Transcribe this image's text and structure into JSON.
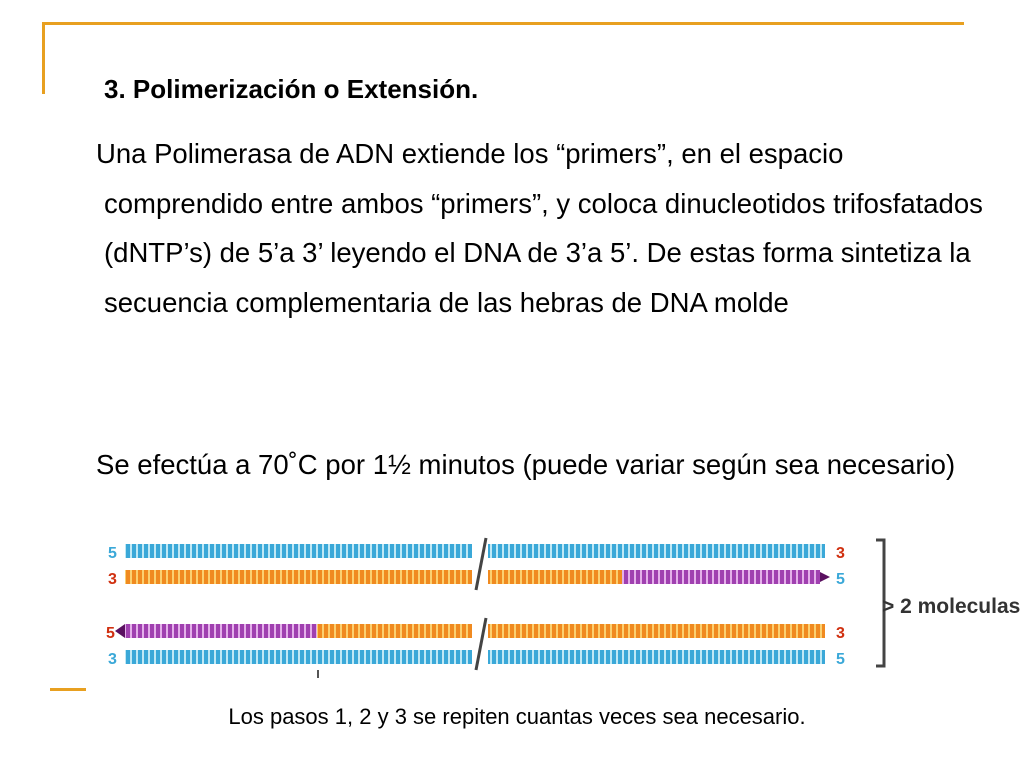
{
  "slide": {
    "heading": "3. Polimerización o Extensión.",
    "paragraph1": "Una Polimerasa de ADN extiende los “primers”, en el espacio comprendido entre ambos “primers”, y coloca dinucleotidos trifosfatados (dNTP’s) de 5’a 3’ leyendo el DNA de 3’a 5’. De estas forma sintetiza la secuencia complementaria de las hebras de DNA molde",
    "paragraph2": "Se efectúa a 70˚C por 1½ minutos (puede variar según sea necesario)",
    "caption": "Los pasos 1, 2 y 3 se repiten cuantas veces sea necesario."
  },
  "diagram": {
    "result_label": "> 2 moleculas",
    "top_pair": {
      "strand1_left": "5",
      "strand1_right": "3",
      "strand2_left": "3",
      "strand2_right": "5"
    },
    "bottom_pair": {
      "strand1_left": "5",
      "strand1_right": "3",
      "strand2_left": "3",
      "strand2_right": "5"
    }
  },
  "colors": {
    "accent": "#e8a020",
    "template_strand": "#3aa8d8",
    "new_strand": "#f08a20",
    "primer": "#a040b0",
    "end_label": "#d03010"
  }
}
